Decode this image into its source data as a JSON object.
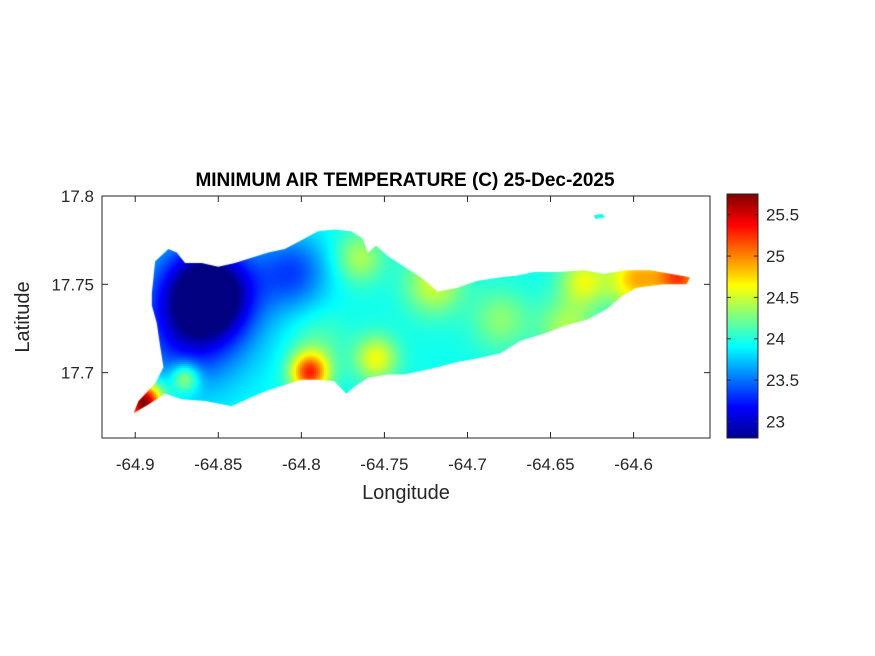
{
  "chart_data": {
    "type": "heatmap",
    "title": "MINIMUM AIR TEMPERATURE (C) 25-Dec-2025",
    "xlabel": "Longitude",
    "ylabel": "Latitude",
    "xlim": [
      -64.92,
      -64.554
    ],
    "ylim": [
      17.663,
      17.8
    ],
    "x_ticks": [
      -64.9,
      -64.85,
      -64.8,
      -64.75,
      -64.7,
      -64.65,
      -64.6
    ],
    "x_tick_labels": [
      "-64.9",
      "-64.85",
      "-64.8",
      "-64.75",
      "-64.7",
      "-64.65",
      "-64.6"
    ],
    "y_ticks": [
      17.8,
      17.75,
      17.7
    ],
    "y_tick_labels": [
      "17.8",
      "17.75",
      "17.7"
    ],
    "grid": false,
    "colormap": "jet",
    "colorbar": {
      "placement": "right",
      "range": [
        22.8,
        25.75
      ],
      "ticks": [
        23,
        23.5,
        24,
        24.5,
        25,
        25.5
      ],
      "tick_labels": [
        "23",
        "23.5",
        "24",
        "24.5",
        "25",
        "25.5"
      ]
    },
    "field": {
      "base_value": 23.95,
      "hotspots": [
        {
          "lon": -64.855,
          "lat": 17.745,
          "value": -1.15,
          "spread": 0.018
        },
        {
          "lon": -64.865,
          "lat": 17.735,
          "value": -0.55,
          "spread": 0.028
        },
        {
          "lon": -64.805,
          "lat": 17.757,
          "value": -0.55,
          "spread": 0.015
        },
        {
          "lon": -64.87,
          "lat": 17.715,
          "value": -0.25,
          "spread": 0.02
        },
        {
          "lon": -64.79,
          "lat": 17.717,
          "value": 0.2,
          "spread": 0.012
        },
        {
          "lon": -64.795,
          "lat": 17.7,
          "value": 1.3,
          "spread": 0.008
        },
        {
          "lon": -64.755,
          "lat": 17.708,
          "value": 0.65,
          "spread": 0.009
        },
        {
          "lon": -64.765,
          "lat": 17.765,
          "value": 0.45,
          "spread": 0.01
        },
        {
          "lon": -64.72,
          "lat": 17.75,
          "value": 0.55,
          "spread": 0.012
        },
        {
          "lon": -64.68,
          "lat": 17.73,
          "value": 0.35,
          "spread": 0.012
        },
        {
          "lon": -64.64,
          "lat": 17.725,
          "value": 0.45,
          "spread": 0.012
        },
        {
          "lon": -64.63,
          "lat": 17.752,
          "value": 0.6,
          "spread": 0.01
        },
        {
          "lon": -64.598,
          "lat": 17.753,
          "value": 0.9,
          "spread": 0.012
        },
        {
          "lon": -64.572,
          "lat": 17.754,
          "value": 1.2,
          "spread": 0.01
        },
        {
          "lon": -64.87,
          "lat": 17.697,
          "value": 0.7,
          "spread": 0.006
        },
        {
          "lon": -64.895,
          "lat": 17.683,
          "value": 1.9,
          "spread": 0.008
        }
      ]
    },
    "land_polygons": [
      [
        [
          -64.89,
          17.745
        ],
        [
          -64.888,
          17.763
        ],
        [
          -64.88,
          17.77
        ],
        [
          -64.875,
          17.768
        ],
        [
          -64.87,
          17.762
        ],
        [
          -64.86,
          17.762
        ],
        [
          -64.85,
          17.76
        ],
        [
          -64.84,
          17.762
        ],
        [
          -64.83,
          17.765
        ],
        [
          -64.82,
          17.768
        ],
        [
          -64.81,
          17.77
        ],
        [
          -64.8,
          17.775
        ],
        [
          -64.79,
          17.78
        ],
        [
          -64.78,
          17.781
        ],
        [
          -64.77,
          17.78
        ],
        [
          -64.763,
          17.776
        ],
        [
          -64.76,
          17.768
        ],
        [
          -64.755,
          17.772
        ],
        [
          -64.748,
          17.766
        ],
        [
          -64.738,
          17.76
        ],
        [
          -64.728,
          17.754
        ],
        [
          -64.718,
          17.746
        ],
        [
          -64.706,
          17.748
        ],
        [
          -64.694,
          17.752
        ],
        [
          -64.68,
          17.754
        ],
        [
          -64.67,
          17.755
        ],
        [
          -64.66,
          17.757
        ],
        [
          -64.645,
          17.757
        ],
        [
          -64.63,
          17.758
        ],
        [
          -64.618,
          17.756
        ],
        [
          -64.604,
          17.758
        ],
        [
          -64.59,
          17.758
        ],
        [
          -64.578,
          17.756
        ],
        [
          -64.566,
          17.754
        ],
        [
          -64.568,
          17.75
        ],
        [
          -64.582,
          17.75
        ],
        [
          -64.598,
          17.748
        ],
        [
          -64.606,
          17.744
        ],
        [
          -64.616,
          17.736
        ],
        [
          -64.628,
          17.73
        ],
        [
          -64.64,
          17.727
        ],
        [
          -64.654,
          17.722
        ],
        [
          -64.668,
          17.718
        ],
        [
          -64.68,
          17.711
        ],
        [
          -64.694,
          17.708
        ],
        [
          -64.706,
          17.706
        ],
        [
          -64.718,
          17.703
        ],
        [
          -64.728,
          17.701
        ],
        [
          -64.738,
          17.699
        ],
        [
          -64.748,
          17.699
        ],
        [
          -64.76,
          17.697
        ],
        [
          -64.768,
          17.692
        ],
        [
          -64.773,
          17.688
        ],
        [
          -64.78,
          17.695
        ],
        [
          -64.79,
          17.696
        ],
        [
          -64.8,
          17.696
        ],
        [
          -64.81,
          17.693
        ],
        [
          -64.82,
          17.69
        ],
        [
          -64.83,
          17.686
        ],
        [
          -64.842,
          17.681
        ],
        [
          -64.858,
          17.684
        ],
        [
          -64.872,
          17.685
        ],
        [
          -64.882,
          17.688
        ],
        [
          -64.892,
          17.682
        ],
        [
          -64.901,
          17.677
        ],
        [
          -64.898,
          17.684
        ],
        [
          -64.888,
          17.694
        ],
        [
          -64.883,
          17.703
        ],
        [
          -64.885,
          17.715
        ],
        [
          -64.887,
          17.728
        ],
        [
          -64.89,
          17.738
        ]
      ],
      [
        [
          -64.624,
          17.789
        ],
        [
          -64.619,
          17.79
        ],
        [
          -64.617,
          17.788
        ],
        [
          -64.623,
          17.787
        ]
      ]
    ]
  }
}
